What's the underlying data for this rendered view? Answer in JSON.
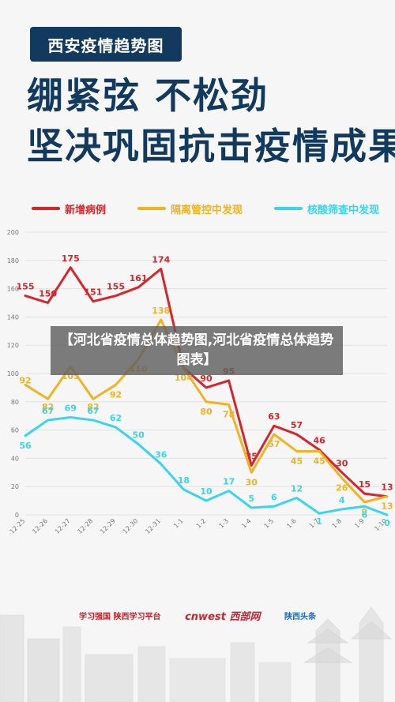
{
  "header": {
    "tag": "西安疫情趋势图",
    "line1": "绷紧弦  不松劲",
    "line2": "坚决巩固抗击疫情成果"
  },
  "overlay_caption": "【河北省疫情总体趋势图,河北省疫情总体趋势图表】",
  "footer": {
    "logo1": "学习强国 陕西学习平台",
    "logo2": "cnwest 西部网",
    "logo3": "陕西头条"
  },
  "colors": {
    "background": "#f6f6f6",
    "navy": "#123a5e",
    "new_cases": "#d7262b",
    "quarantine": "#f0b323",
    "screening": "#3ad4ee"
  },
  "chart_data": {
    "type": "line",
    "x": [
      "12-25",
      "12-26",
      "12-27",
      "12-28",
      "12-29",
      "12-30",
      "12-31",
      "1-1",
      "1-2",
      "1-3",
      "1-4",
      "1-5",
      "1-6",
      "1-7",
      "1-8",
      "1-9",
      "1-10"
    ],
    "ylim": [
      0,
      200
    ],
    "yticks": [
      0,
      20,
      40,
      60,
      80,
      100,
      120,
      140,
      160,
      180,
      200
    ],
    "grid": true,
    "legend_position": "top",
    "series": [
      {
        "name": "新增病例",
        "color": "#d7262b",
        "values": [
          155,
          150,
          175,
          151,
          155,
          161,
          174,
          104,
          90,
          95,
          35,
          63,
          57,
          46,
          30,
          15,
          13
        ],
        "labels": [
          "155",
          "150",
          "175",
          "151",
          "155",
          "161",
          "174",
          "",
          "90",
          "95",
          "35",
          "63",
          "57",
          "46",
          "30",
          "15",
          "13"
        ]
      },
      {
        "name": "隔离管控中发现",
        "color": "#f0b323",
        "values": [
          92,
          82,
          105,
          82,
          92,
          110,
          138,
          104,
          80,
          78,
          30,
          57,
          45,
          45,
          26,
          9,
          13
        ],
        "labels": [
          "92",
          "82",
          "105",
          "82",
          "92",
          "110",
          "138",
          "104",
          "80",
          "78",
          "30",
          "57",
          "45",
          "45",
          "26",
          "9",
          "13"
        ]
      },
      {
        "name": "核酸筛查中发现",
        "color": "#3ad4ee",
        "values": [
          56,
          67,
          69,
          67,
          62,
          50,
          36,
          18,
          10,
          17,
          5,
          6,
          12,
          1,
          4,
          6,
          0
        ],
        "labels": [
          "56",
          "67",
          "69",
          "67",
          "62",
          "50",
          "36",
          "18",
          "10",
          "17",
          "5",
          "6",
          "12",
          "1",
          "4",
          "6",
          "0"
        ]
      }
    ]
  }
}
